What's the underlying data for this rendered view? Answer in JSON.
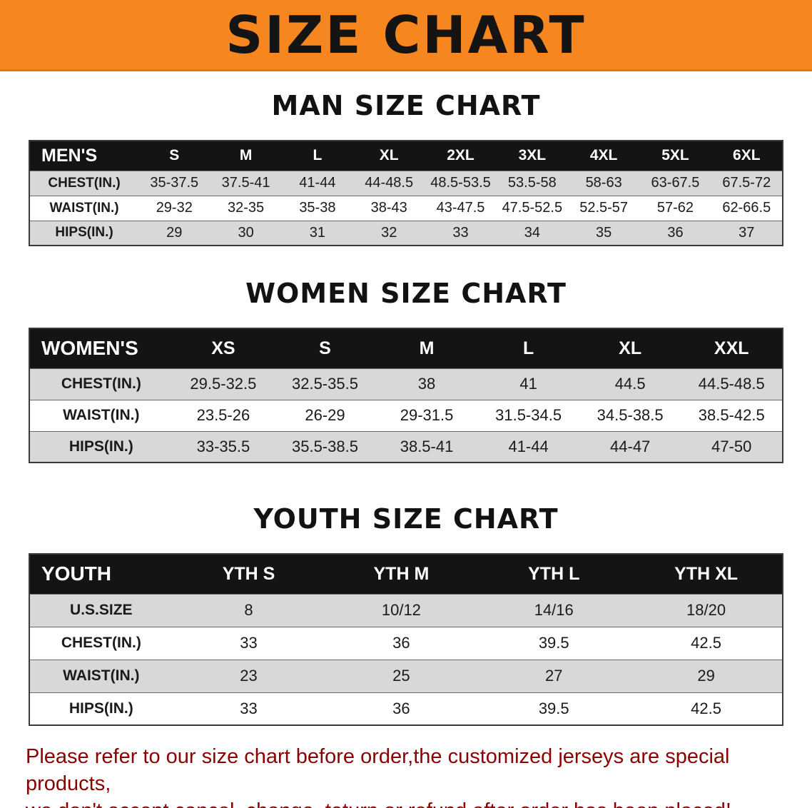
{
  "banner": {
    "title": "SIZE CHART",
    "bg_color": "#F6861F"
  },
  "sections": [
    {
      "id": "men",
      "heading": "MAN SIZE CHART",
      "table": {
        "header": [
          "MEN'S",
          "S",
          "M",
          "L",
          "XL",
          "2XL",
          "3XL",
          "4XL",
          "5XL",
          "6XL"
        ],
        "rows": [
          [
            "CHEST(IN.)",
            "35-37.5",
            "37.5-41",
            "41-44",
            "44-48.5",
            "48.5-53.5",
            "53.5-58",
            "58-63",
            "63-67.5",
            "67.5-72"
          ],
          [
            "WAIST(IN.)",
            "29-32",
            "32-35",
            "35-38",
            "38-43",
            "43-47.5",
            "47.5-52.5",
            "52.5-57",
            "57-62",
            "62-66.5"
          ],
          [
            "HIPS(IN.)",
            "29",
            "30",
            "31",
            "32",
            "33",
            "34",
            "35",
            "36",
            "37"
          ]
        ]
      }
    },
    {
      "id": "women",
      "heading": "WOMEN SIZE CHART",
      "table": {
        "header": [
          "WOMEN'S",
          "XS",
          "S",
          "M",
          "L",
          "XL",
          "XXL"
        ],
        "rows": [
          [
            "CHEST(IN.)",
            "29.5-32.5",
            "32.5-35.5",
            "38",
            "41",
            "44.5",
            "44.5-48.5"
          ],
          [
            "WAIST(IN.)",
            "23.5-26",
            "26-29",
            "29-31.5",
            "31.5-34.5",
            "34.5-38.5",
            "38.5-42.5"
          ],
          [
            "HIPS(IN.)",
            "33-35.5",
            "35.5-38.5",
            "38.5-41",
            "41-44",
            "44-47",
            "47-50"
          ]
        ]
      }
    },
    {
      "id": "youth",
      "heading": "YOUTH SIZE CHART",
      "table": {
        "header": [
          "YOUTH",
          "YTH S",
          "YTH M",
          "YTH L",
          "YTH XL"
        ],
        "rows": [
          [
            "U.S.SIZE",
            "8",
            "10/12",
            "14/16",
            "18/20"
          ],
          [
            "CHEST(IN.)",
            "33",
            "36",
            "39.5",
            "42.5"
          ],
          [
            "WAIST(IN.)",
            "23",
            "25",
            "27",
            "29"
          ],
          [
            "HIPS(IN.)",
            "33",
            "36",
            "39.5",
            "42.5"
          ]
        ]
      }
    }
  ],
  "footer": {
    "line1": "Please refer to our size chart before order,the customized jerseys are special products,",
    "line2": "we don't accept cancel, change, teturn or refund after order has been placed!",
    "color": "#8B0000"
  }
}
